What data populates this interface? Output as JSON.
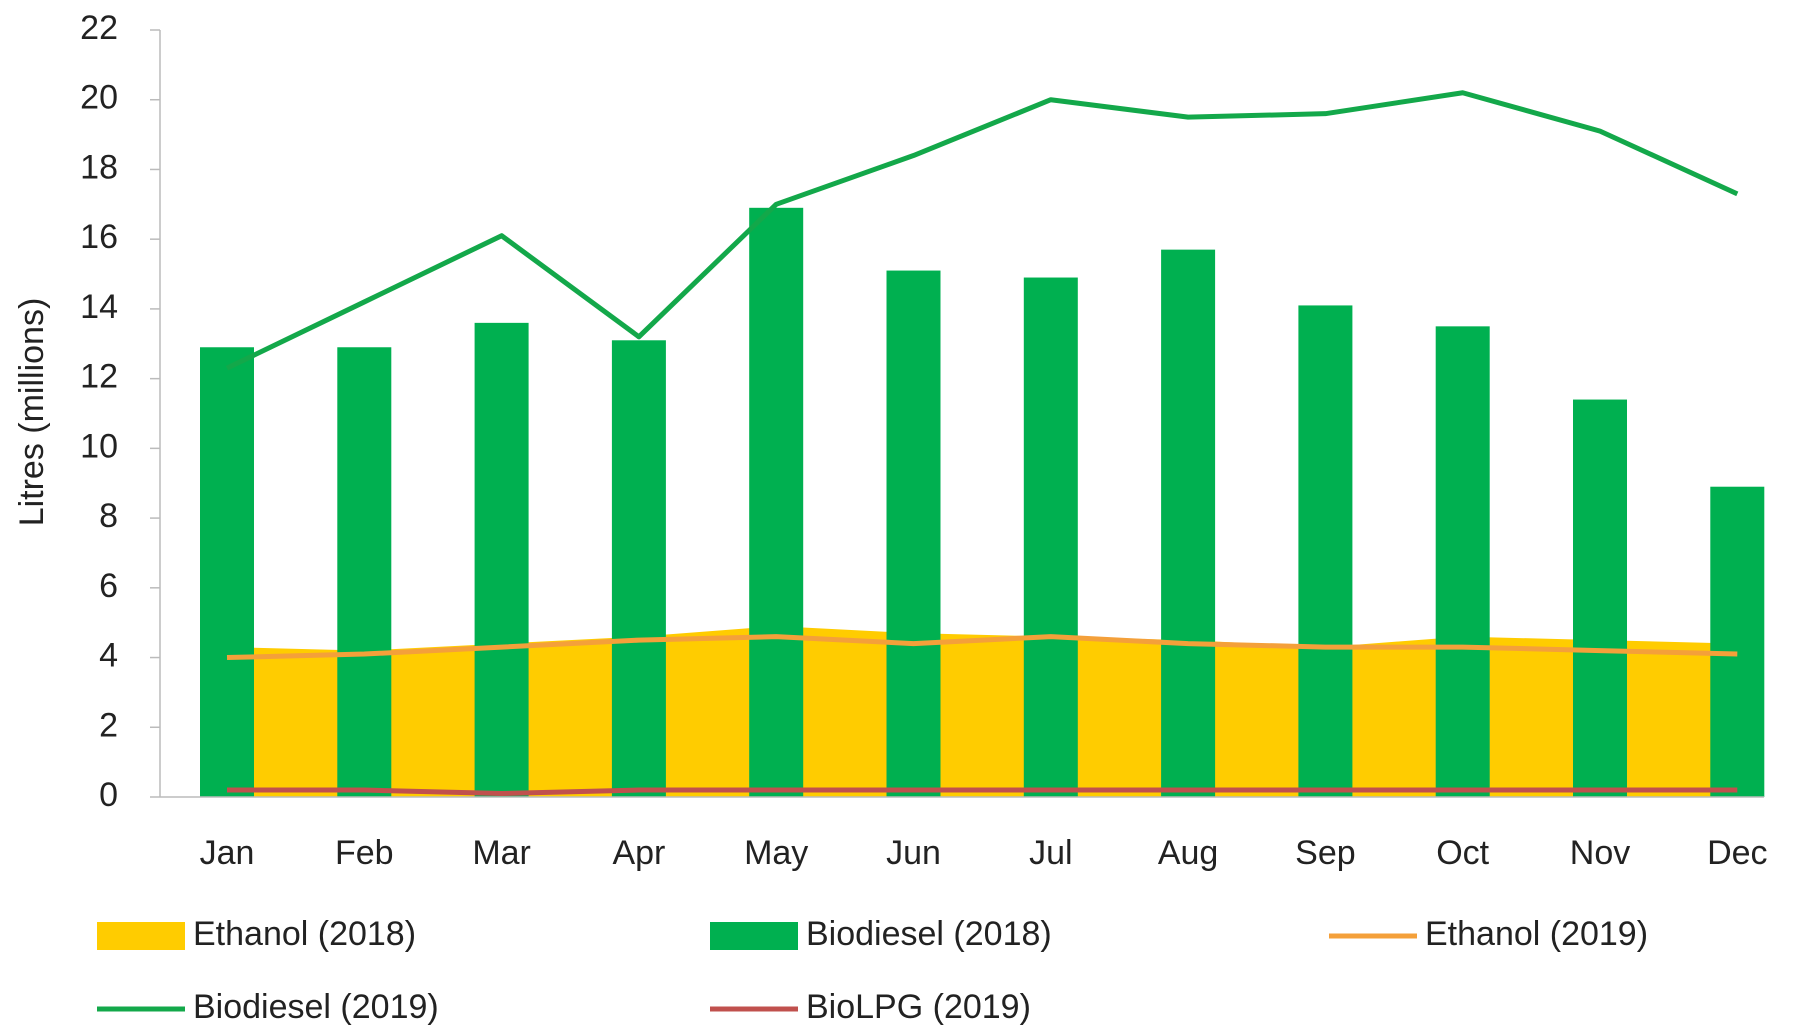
{
  "chart_data": {
    "type": "combo",
    "y_label": "Litres (millions)",
    "categories": [
      "Jan",
      "Feb",
      "Mar",
      "Apr",
      "May",
      "Jun",
      "Jul",
      "Aug",
      "Sep",
      "Oct",
      "Nov",
      "Dec"
    ],
    "ylim": [
      0,
      22
    ],
    "yticks": [
      0,
      2,
      4,
      6,
      8,
      10,
      12,
      14,
      16,
      18,
      20,
      22
    ],
    "grid": false,
    "legend": "bottom",
    "series": [
      {
        "name": "Ethanol (2018)",
        "type": "area",
        "color": "#FFCC00",
        "values": [
          4.3,
          4.2,
          4.4,
          4.6,
          4.9,
          4.7,
          4.6,
          4.5,
          4.3,
          4.6,
          4.5,
          4.4
        ]
      },
      {
        "name": "Biodiesel (2018)",
        "type": "bar",
        "color": "#00B050",
        "values": [
          12.9,
          12.9,
          13.6,
          13.1,
          16.9,
          15.1,
          14.9,
          15.7,
          14.1,
          13.5,
          11.4,
          8.9
        ]
      },
      {
        "name": "Ethanol (2019)",
        "type": "line",
        "color": "#F4A03A",
        "values": [
          4.0,
          4.1,
          4.3,
          4.5,
          4.6,
          4.4,
          4.6,
          4.4,
          4.3,
          4.3,
          4.2,
          4.1
        ]
      },
      {
        "name": "Biodiesel (2019)",
        "type": "line",
        "color": "#13A84A",
        "values": [
          12.3,
          14.2,
          16.1,
          13.2,
          17.0,
          18.4,
          20.0,
          19.5,
          19.6,
          20.2,
          19.1,
          17.3
        ]
      },
      {
        "name": "BioLPG (2019)",
        "type": "line",
        "color": "#C0504D",
        "values": [
          0.2,
          0.2,
          0.1,
          0.2,
          0.2,
          0.2,
          0.2,
          0.2,
          0.2,
          0.2,
          0.2,
          0.2
        ]
      }
    ]
  }
}
